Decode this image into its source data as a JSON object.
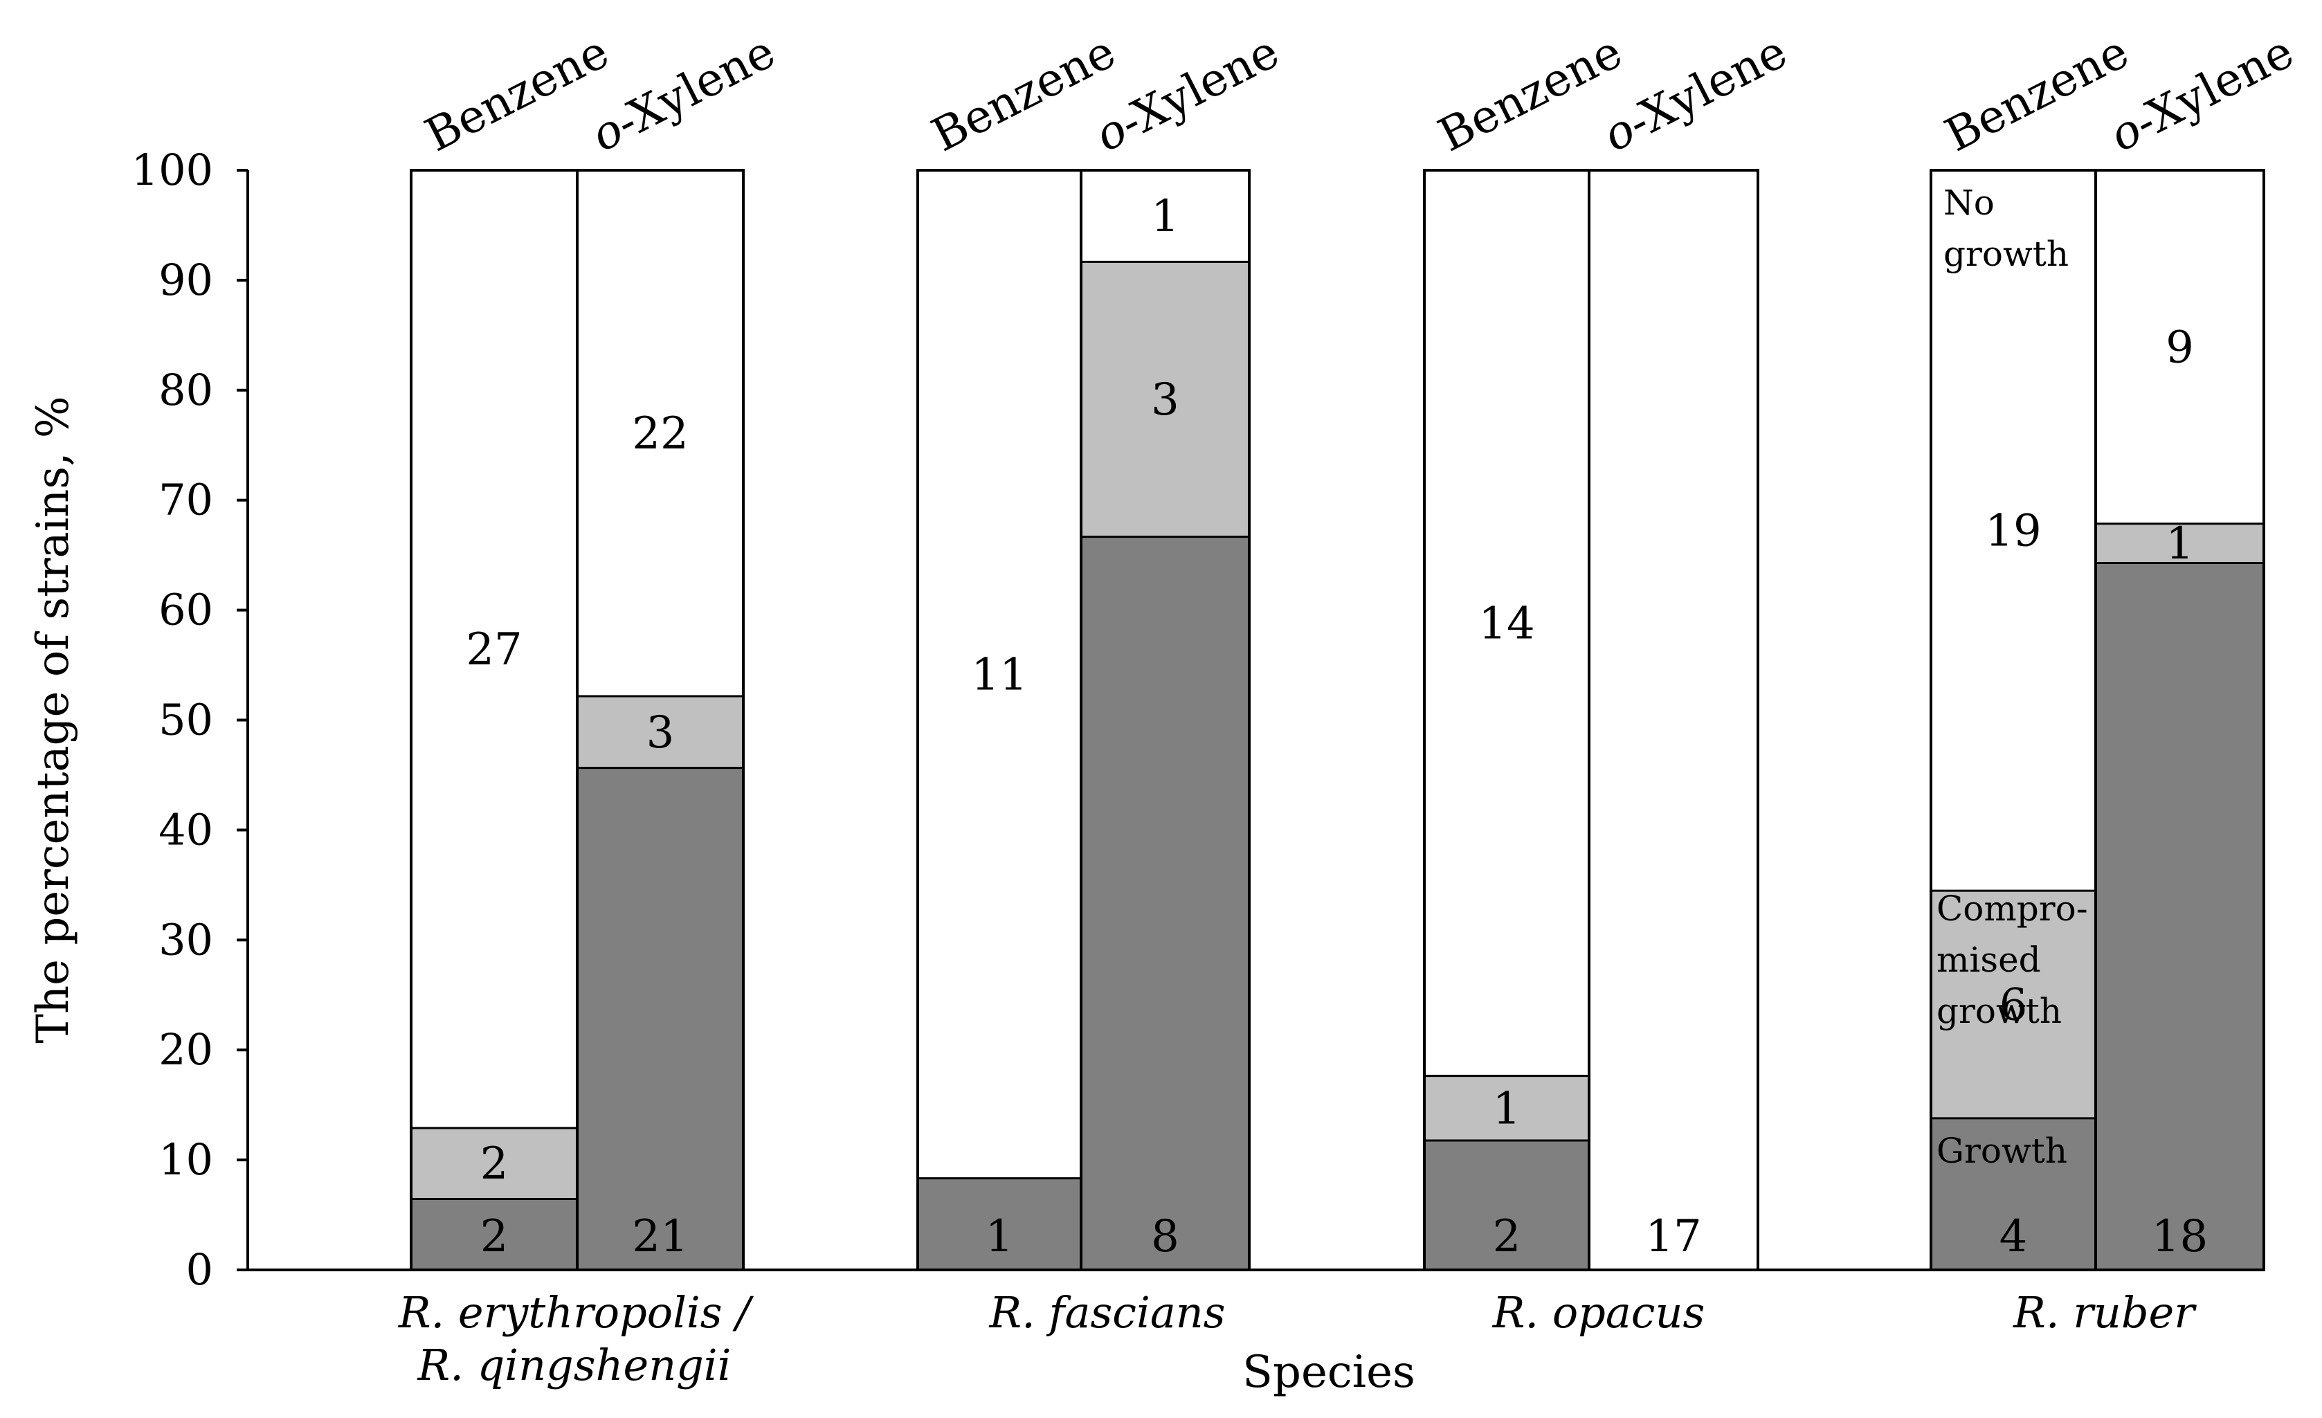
{
  "chart_data": {
    "type": "bar",
    "stacked": true,
    "ylabel": "The percentage of strains, %",
    "xlabel": "Species",
    "ylim": [
      0,
      100
    ],
    "yticks": [
      0,
      10,
      20,
      30,
      40,
      50,
      60,
      70,
      80,
      90,
      100
    ],
    "segment_order": [
      "Growth",
      "Compromised growth",
      "No growth"
    ],
    "segment_colors": {
      "Growth": "#808080",
      "Compromised growth": "#c0c0c0",
      "No growth": "#ffffff"
    },
    "groups": [
      {
        "species_lines": [
          "R. erythropolis /",
          "R. qingshengii"
        ],
        "bars": [
          {
            "condition": "Benzene",
            "growth": 2,
            "compromised": 2,
            "no_growth": 27,
            "count_labels": [
              "2",
              "2",
              "27"
            ]
          },
          {
            "condition": "o-Xylene",
            "growth": 21,
            "compromised": 3,
            "no_growth": 22,
            "count_labels": [
              "21",
              "3",
              "22"
            ]
          }
        ]
      },
      {
        "species_lines": [
          "R. fascians"
        ],
        "bars": [
          {
            "condition": "Benzene",
            "growth": 1,
            "compromised": 0,
            "no_growth": 11,
            "count_labels": [
              "1",
              "",
              "11"
            ]
          },
          {
            "condition": "o-Xylene",
            "growth": 8,
            "compromised": 3,
            "no_growth": 1,
            "count_labels": [
              "8",
              "3",
              "1"
            ]
          }
        ]
      },
      {
        "species_lines": [
          "R. opacus"
        ],
        "bars": [
          {
            "condition": "Benzene",
            "growth": 2,
            "compromised": 1,
            "no_growth": 14,
            "count_labels": [
              "2",
              "1",
              "14"
            ]
          },
          {
            "condition": "o-Xylene",
            "growth": 0,
            "compromised": 0,
            "no_growth": 17,
            "count_labels": [
              "",
              "",
              "17"
            ]
          }
        ]
      },
      {
        "species_lines": [
          "R. ruber"
        ],
        "bars": [
          {
            "condition": "Benzene",
            "growth": 4,
            "compromised": 6,
            "no_growth": 19,
            "count_labels": [
              "4",
              "6",
              "19"
            ]
          },
          {
            "condition": "o-Xylene",
            "growth": 18,
            "compromised": 1,
            "no_growth": 9,
            "count_labels": [
              "18",
              "1",
              "9"
            ]
          }
        ]
      }
    ],
    "annotations": {
      "growth": "Growth",
      "compromised": [
        "Compro-",
        "mised",
        "growth"
      ],
      "no_growth": [
        "No",
        "growth"
      ]
    }
  }
}
